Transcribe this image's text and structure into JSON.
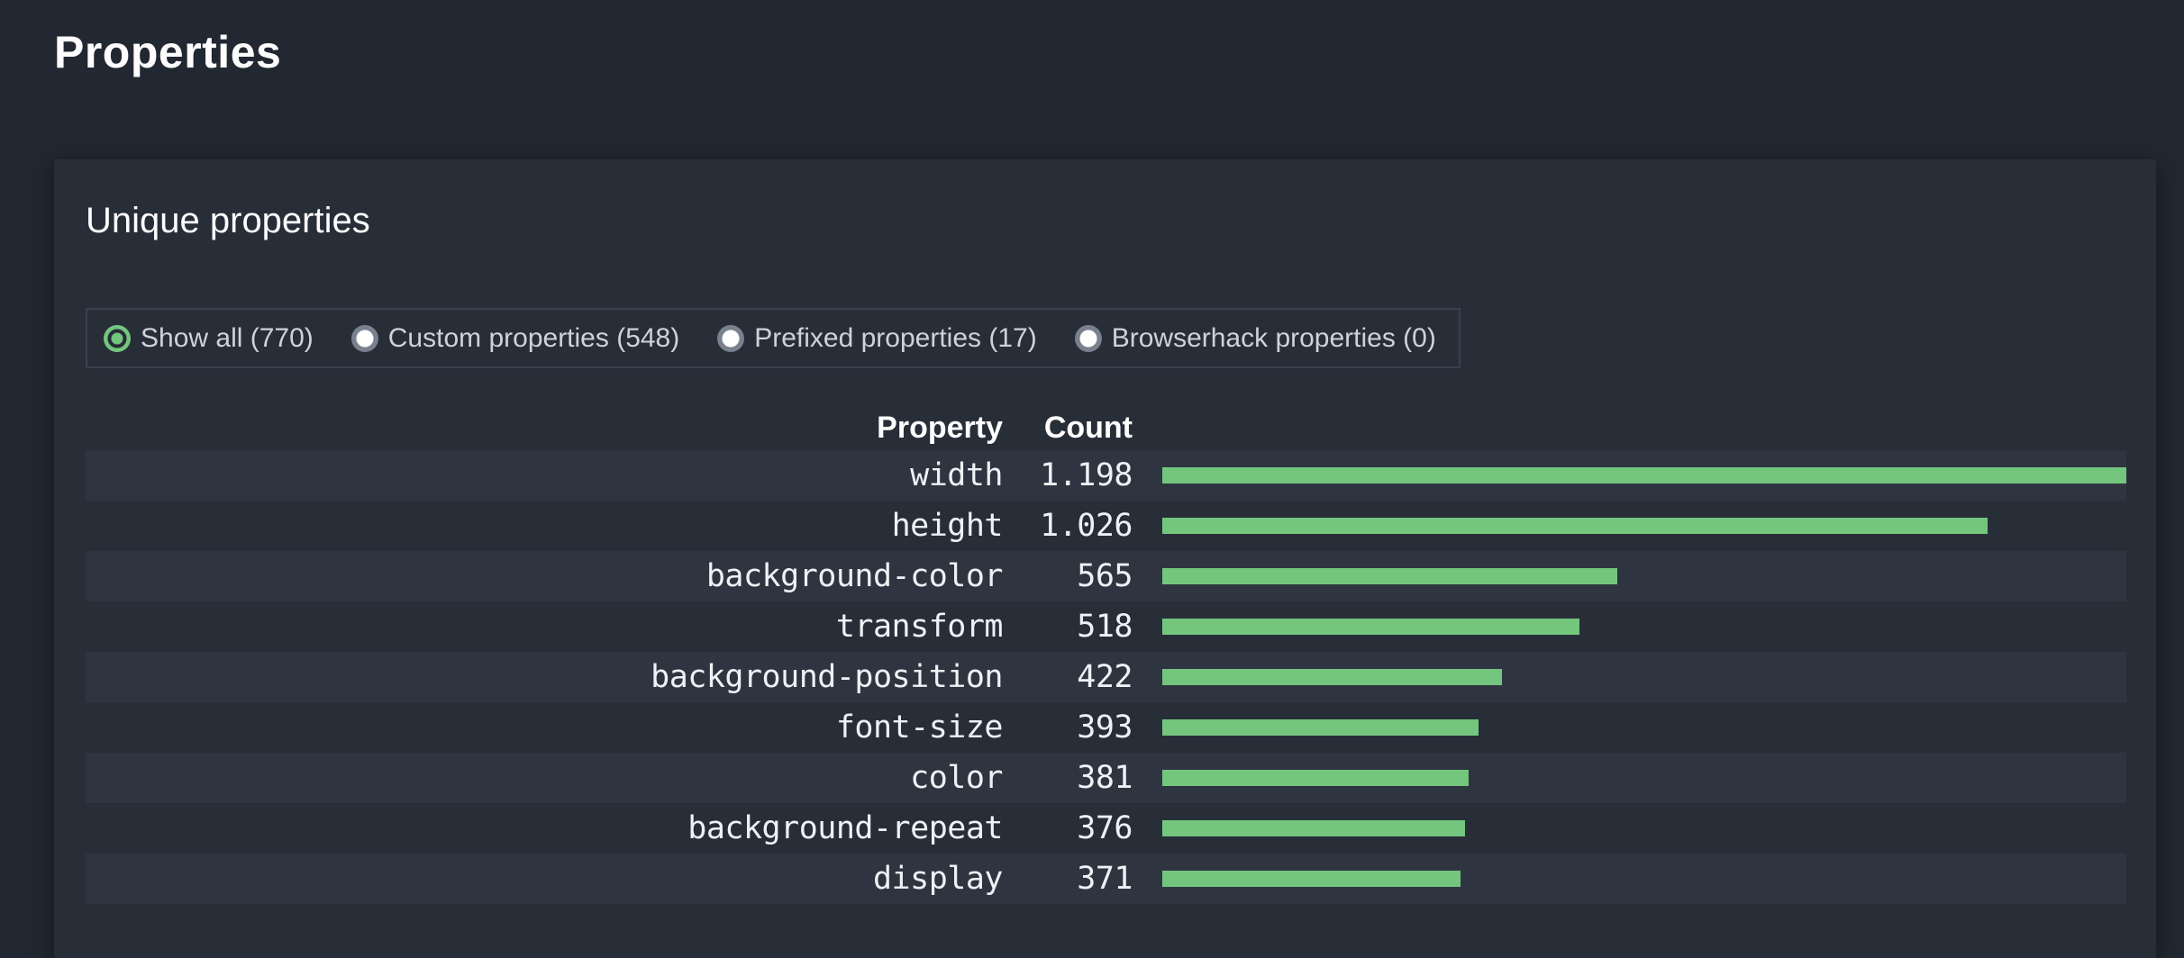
{
  "page": {
    "title": "Properties"
  },
  "card": {
    "title": "Unique properties",
    "filters": [
      {
        "id": "show-all",
        "label": "Show all (770)",
        "count": 770,
        "selected": true
      },
      {
        "id": "custom-properties",
        "label": "Custom properties (548)",
        "count": 548,
        "selected": false
      },
      {
        "id": "prefixed-properties",
        "label": "Prefixed properties (17)",
        "count": 17,
        "selected": false
      },
      {
        "id": "browserhack-properties",
        "label": "Browserhack properties (0)",
        "count": 0,
        "selected": false
      }
    ],
    "table": {
      "headers": [
        "Property",
        "Count"
      ],
      "max_count": 1198,
      "rows": [
        {
          "property": "width",
          "count": 1198,
          "count_display": "1.198"
        },
        {
          "property": "height",
          "count": 1026,
          "count_display": "1.026"
        },
        {
          "property": "background-color",
          "count": 565,
          "count_display": "565"
        },
        {
          "property": "transform",
          "count": 518,
          "count_display": "518"
        },
        {
          "property": "background-position",
          "count": 422,
          "count_display": "422"
        },
        {
          "property": "font-size",
          "count": 393,
          "count_display": "393"
        },
        {
          "property": "color",
          "count": 381,
          "count_display": "381"
        },
        {
          "property": "background-repeat",
          "count": 376,
          "count_display": "376"
        },
        {
          "property": "display",
          "count": 371,
          "count_display": "371"
        }
      ]
    }
  },
  "chart_data": {
    "type": "bar",
    "orientation": "horizontal",
    "title": "Unique properties",
    "xlabel": "Count",
    "ylabel": "Property",
    "categories": [
      "width",
      "height",
      "background-color",
      "transform",
      "background-position",
      "font-size",
      "color",
      "background-repeat",
      "display"
    ],
    "values": [
      1198,
      1026,
      565,
      518,
      422,
      393,
      381,
      376,
      371
    ],
    "xlim": [
      0,
      1198
    ],
    "grid": false,
    "legend": "none",
    "bar_color": "#74c67e"
  },
  "colors": {
    "page_background": "#222831",
    "card_background": "#282e38",
    "row_stripe": "#2f3540",
    "bar_green": "#74c67e",
    "filter_border": "#3a414d",
    "radio_ring_gray": "#78818d",
    "text_primary": "#ffffff",
    "text_secondary": "#cdd3db"
  }
}
